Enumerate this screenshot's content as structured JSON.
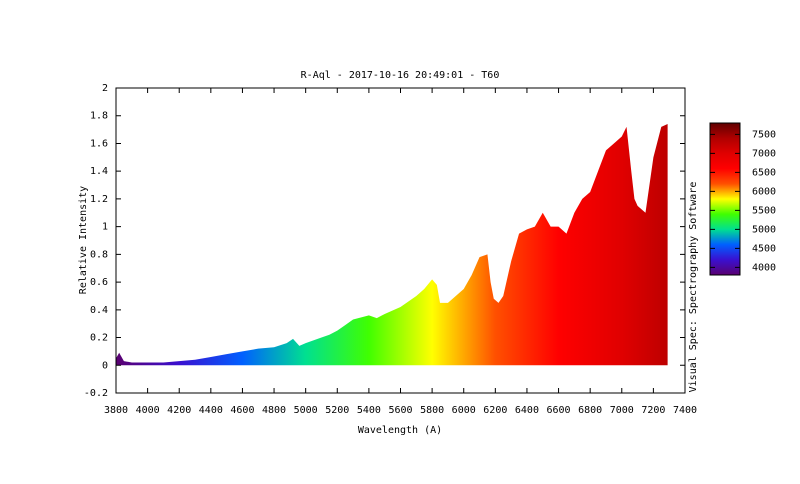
{
  "chart_data": {
    "type": "area",
    "title": "R-Aql - 2017-10-16 20:49:01 - T60",
    "xlabel": "Wavelength (A)",
    "ylabel": "Relative Intensity",
    "side_label": "Visual Spec: Spectrography Software",
    "x": [
      3800,
      3820,
      3850,
      3900,
      4000,
      4100,
      4200,
      4300,
      4400,
      4500,
      4600,
      4700,
      4800,
      4880,
      4920,
      4960,
      5000,
      5100,
      5150,
      5200,
      5250,
      5300,
      5400,
      5450,
      5500,
      5600,
      5700,
      5750,
      5800,
      5830,
      5850,
      5900,
      6000,
      6050,
      6100,
      6150,
      6170,
      6190,
      6220,
      6250,
      6300,
      6350,
      6400,
      6450,
      6500,
      6550,
      6600,
      6650,
      6700,
      6750,
      6800,
      6850,
      6900,
      6950,
      7000,
      7030,
      7060,
      7080,
      7100,
      7150,
      7200,
      7250,
      7290
    ],
    "values": [
      0.05,
      0.09,
      0.03,
      0.02,
      0.02,
      0.02,
      0.03,
      0.04,
      0.06,
      0.08,
      0.1,
      0.12,
      0.13,
      0.16,
      0.19,
      0.14,
      0.16,
      0.2,
      0.22,
      0.25,
      0.29,
      0.33,
      0.36,
      0.34,
      0.37,
      0.42,
      0.5,
      0.55,
      0.62,
      0.58,
      0.45,
      0.45,
      0.55,
      0.65,
      0.78,
      0.8,
      0.6,
      0.48,
      0.45,
      0.5,
      0.75,
      0.95,
      0.98,
      1.0,
      1.1,
      1.0,
      1.0,
      0.95,
      1.1,
      1.2,
      1.25,
      1.4,
      1.55,
      1.6,
      1.65,
      1.72,
      1.4,
      1.2,
      1.15,
      1.1,
      1.5,
      1.72,
      1.74
    ],
    "xlim": [
      3800,
      7400
    ],
    "ylim": [
      -0.2,
      2
    ],
    "xticks": [
      3800,
      4000,
      4200,
      4400,
      4600,
      4800,
      5000,
      5200,
      5400,
      5600,
      5800,
      6000,
      6200,
      6400,
      6600,
      6800,
      7000,
      7200,
      7400
    ],
    "yticks": [
      -0.2,
      0,
      0.2,
      0.4,
      0.6,
      0.8,
      1,
      1.2,
      1.4,
      1.6,
      1.8,
      2
    ],
    "clim": [
      3800,
      7800
    ],
    "cticks": [
      4000,
      4500,
      5000,
      5500,
      6000,
      6500,
      7000,
      7500
    ],
    "colormap": [
      "#5a0070",
      "#3a10d0",
      "#0060ff",
      "#00e090",
      "#40ff00",
      "#ffff00",
      "#ff5000",
      "#ff0000",
      "#e00000",
      "#b00000",
      "#600000"
    ]
  }
}
